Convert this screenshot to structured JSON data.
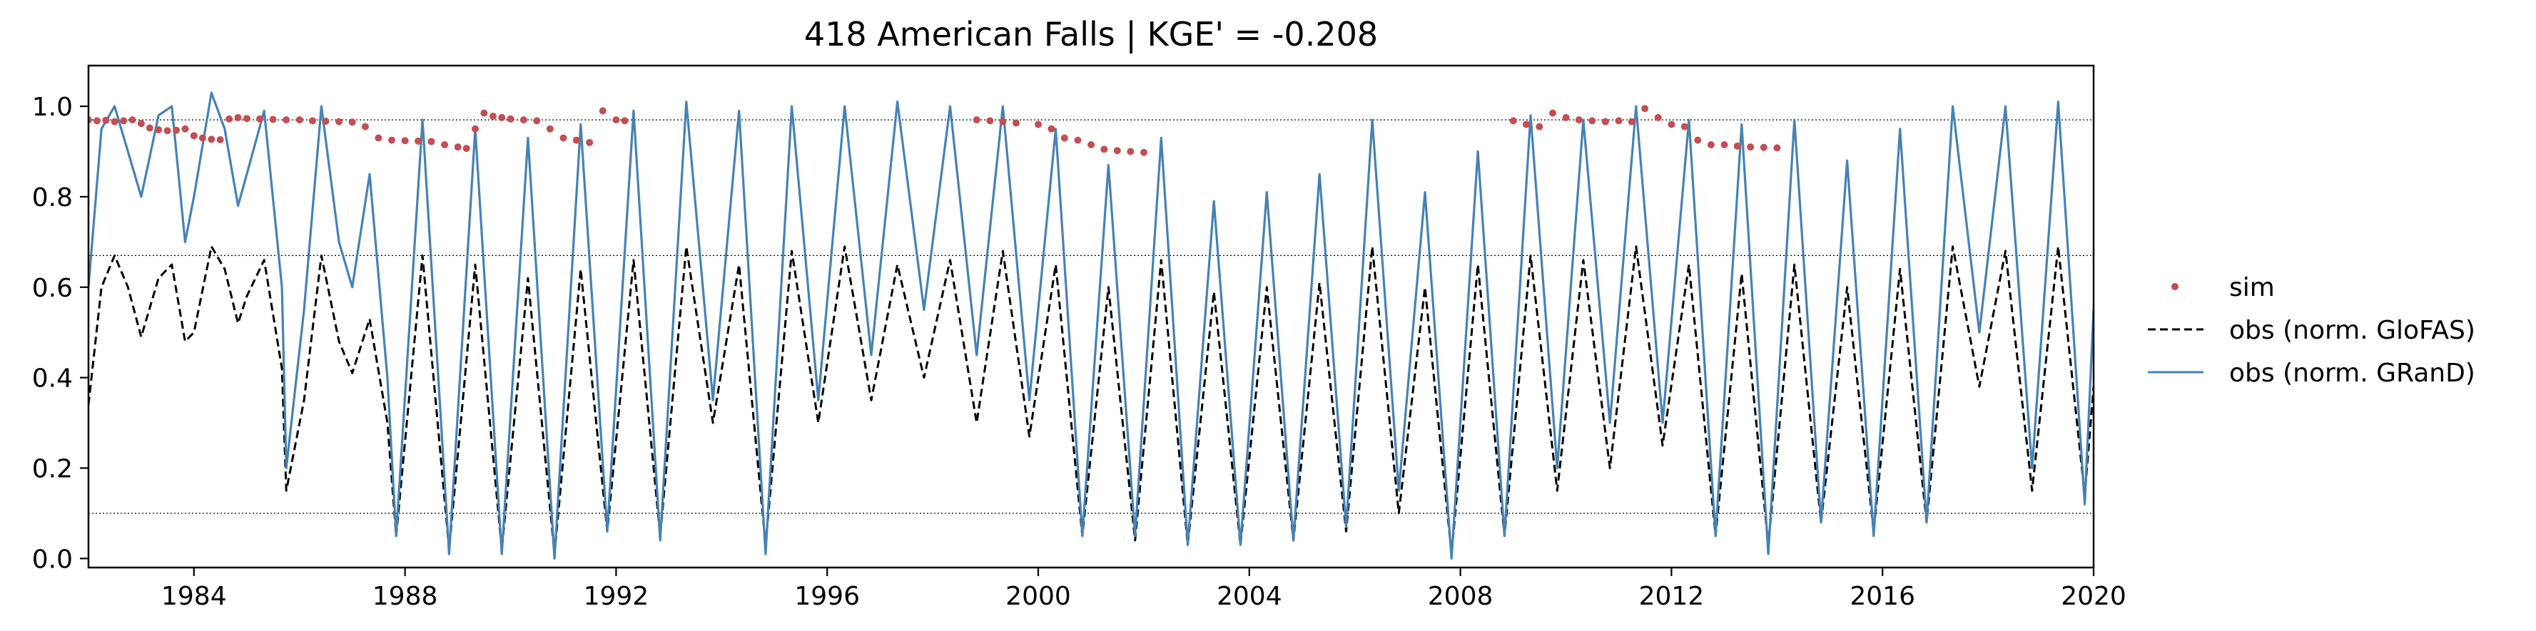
{
  "chart_data": {
    "type": "line",
    "title": "418  American Falls | KGE' = -0.208",
    "xlabel": "",
    "ylabel": "",
    "x_range": [
      "1982-01-01",
      "2020-01-01"
    ],
    "ylim": [
      -0.02,
      1.09
    ],
    "x_ticks": [
      {
        "label": "1984",
        "date": "1984-01-01"
      },
      {
        "label": "1988",
        "date": "1988-01-01"
      },
      {
        "label": "1992",
        "date": "1992-01-01"
      },
      {
        "label": "1996",
        "date": "1996-01-01"
      },
      {
        "label": "2000",
        "date": "2000-01-01"
      },
      {
        "label": "2004",
        "date": "2004-01-01"
      },
      {
        "label": "2008",
        "date": "2008-01-01"
      },
      {
        "label": "2012",
        "date": "2012-01-01"
      },
      {
        "label": "2016",
        "date": "2016-01-01"
      },
      {
        "label": "2020",
        "date": "2020-01-01"
      }
    ],
    "y_ticks": [
      {
        "label": "0.0",
        "value": 0.0
      },
      {
        "label": "0.2",
        "value": 0.2
      },
      {
        "label": "0.4",
        "value": 0.4
      },
      {
        "label": "0.6",
        "value": 0.6
      },
      {
        "label": "0.8",
        "value": 0.8
      },
      {
        "label": "1.0",
        "value": 1.0
      }
    ],
    "reference_lines": [
      0.1,
      0.67,
      0.97
    ],
    "grid": false,
    "legend_position": "right",
    "series": [
      {
        "name": "sim",
        "style": "dots",
        "color": "#c44e52",
        "points": [
          [
            "1982-01-01",
            0.97
          ],
          [
            "1982-03-01",
            0.968
          ],
          [
            "1982-05-01",
            0.969
          ],
          [
            "1982-07-01",
            0.966
          ],
          [
            "1982-09-01",
            0.968
          ],
          [
            "1982-11-01",
            0.97
          ],
          [
            "1983-01-01",
            0.962
          ],
          [
            "1983-03-01",
            0.952
          ],
          [
            "1983-05-01",
            0.948
          ],
          [
            "1983-07-01",
            0.946
          ],
          [
            "1983-09-01",
            0.947
          ],
          [
            "1983-11-01",
            0.95
          ],
          [
            "1984-01-01",
            0.935
          ],
          [
            "1984-03-01",
            0.93
          ],
          [
            "1984-05-01",
            0.927
          ],
          [
            "1984-07-01",
            0.926
          ],
          [
            "1984-09-01",
            0.972
          ],
          [
            "1984-11-01",
            0.975
          ],
          [
            "1985-01-01",
            0.973
          ],
          [
            "1985-04-01",
            0.972
          ],
          [
            "1985-07-01",
            0.971
          ],
          [
            "1985-10-01",
            0.97
          ],
          [
            "1986-01-01",
            0.97
          ],
          [
            "1986-04-01",
            0.968
          ],
          [
            "1986-07-01",
            0.967
          ],
          [
            "1986-10-01",
            0.966
          ],
          [
            "1987-01-01",
            0.965
          ],
          [
            "1987-04-01",
            0.955
          ],
          [
            "1987-07-01",
            0.93
          ],
          [
            "1987-10-01",
            0.925
          ],
          [
            "1988-01-01",
            0.924
          ],
          [
            "1988-04-01",
            0.923
          ],
          [
            "1988-07-01",
            0.922
          ],
          [
            "1988-10-01",
            0.915
          ],
          [
            "1989-01-01",
            0.91
          ],
          [
            "1989-03-01",
            0.907
          ],
          [
            "1989-05-01",
            0.95
          ],
          [
            "1989-07-01",
            0.985
          ],
          [
            "1989-09-01",
            0.978
          ],
          [
            "1989-11-01",
            0.975
          ],
          [
            "1990-01-01",
            0.972
          ],
          [
            "1990-04-01",
            0.97
          ],
          [
            "1990-07-01",
            0.968
          ],
          [
            "1990-10-01",
            0.95
          ],
          [
            "1991-01-01",
            0.93
          ],
          [
            "1991-04-01",
            0.925
          ],
          [
            "1991-07-01",
            0.92
          ],
          [
            "1991-10-01",
            0.99
          ],
          [
            "1992-01-01",
            0.97
          ],
          [
            "1992-03-01",
            0.968
          ],
          [
            "1998-11-01",
            0.97
          ],
          [
            "1999-02-01",
            0.968
          ],
          [
            "1999-05-01",
            0.966
          ],
          [
            "1999-08-01",
            0.963
          ],
          [
            "2000-01-01",
            0.96
          ],
          [
            "2000-04-01",
            0.95
          ],
          [
            "2000-07-01",
            0.93
          ],
          [
            "2000-10-01",
            0.925
          ],
          [
            "2001-01-01",
            0.915
          ],
          [
            "2001-04-01",
            0.905
          ],
          [
            "2001-07-01",
            0.902
          ],
          [
            "2001-10-01",
            0.9
          ],
          [
            "2002-01-01",
            0.898
          ],
          [
            "2009-01-01",
            0.968
          ],
          [
            "2009-04-01",
            0.96
          ],
          [
            "2009-07-01",
            0.955
          ],
          [
            "2009-10-01",
            0.985
          ],
          [
            "2010-01-01",
            0.975
          ],
          [
            "2010-04-01",
            0.97
          ],
          [
            "2010-07-01",
            0.968
          ],
          [
            "2010-10-01",
            0.966
          ],
          [
            "2011-01-01",
            0.968
          ],
          [
            "2011-04-01",
            0.966
          ],
          [
            "2011-07-01",
            0.995
          ],
          [
            "2011-10-01",
            0.975
          ],
          [
            "2012-01-01",
            0.96
          ],
          [
            "2012-04-01",
            0.955
          ],
          [
            "2012-07-01",
            0.925
          ],
          [
            "2012-10-01",
            0.915
          ],
          [
            "2013-01-01",
            0.915
          ],
          [
            "2013-04-01",
            0.912
          ],
          [
            "2013-07-01",
            0.91
          ],
          [
            "2013-10-01",
            0.909
          ],
          [
            "2014-01-01",
            0.908
          ]
        ]
      },
      {
        "name": "obs (norm. GloFAS)",
        "style": "dashed",
        "color": "#000000",
        "points": [
          [
            "1982-01-01",
            0.34
          ],
          [
            "1982-04-01",
            0.6
          ],
          [
            "1982-07-01",
            0.67
          ],
          [
            "1982-10-01",
            0.6
          ],
          [
            "1983-01-01",
            0.49
          ],
          [
            "1983-05-01",
            0.62
          ],
          [
            "1983-08-01",
            0.65
          ],
          [
            "1983-11-01",
            0.48
          ],
          [
            "1984-01-01",
            0.5
          ],
          [
            "1984-05-01",
            0.69
          ],
          [
            "1984-08-01",
            0.64
          ],
          [
            "1984-11-01",
            0.52
          ],
          [
            "1985-01-01",
            0.58
          ],
          [
            "1985-05-01",
            0.66
          ],
          [
            "1985-09-01",
            0.42
          ],
          [
            "1985-10-01",
            0.15
          ],
          [
            "1986-02-01",
            0.35
          ],
          [
            "1986-06-01",
            0.67
          ],
          [
            "1986-10-01",
            0.48
          ],
          [
            "1987-01-01",
            0.41
          ],
          [
            "1987-05-01",
            0.53
          ],
          [
            "1987-09-01",
            0.3
          ],
          [
            "1987-11-01",
            0.05
          ],
          [
            "1988-05-01",
            0.67
          ],
          [
            "1988-11-01",
            0.02
          ],
          [
            "1989-05-01",
            0.65
          ],
          [
            "1989-11-01",
            0.02
          ],
          [
            "1990-05-01",
            0.62
          ],
          [
            "1990-11-01",
            0.01
          ],
          [
            "1991-05-01",
            0.64
          ],
          [
            "1991-11-01",
            0.06
          ],
          [
            "1992-05-01",
            0.66
          ],
          [
            "1992-11-01",
            0.05
          ],
          [
            "1993-05-01",
            0.69
          ],
          [
            "1993-11-01",
            0.3
          ],
          [
            "1994-05-01",
            0.65
          ],
          [
            "1994-11-01",
            0.03
          ],
          [
            "1995-05-01",
            0.68
          ],
          [
            "1995-11-01",
            0.3
          ],
          [
            "1996-05-01",
            0.69
          ],
          [
            "1996-11-01",
            0.35
          ],
          [
            "1997-05-01",
            0.65
          ],
          [
            "1997-11-01",
            0.4
          ],
          [
            "1998-05-01",
            0.66
          ],
          [
            "1998-11-01",
            0.3
          ],
          [
            "1999-05-01",
            0.68
          ],
          [
            "1999-11-01",
            0.27
          ],
          [
            "2000-05-01",
            0.65
          ],
          [
            "2000-11-01",
            0.05
          ],
          [
            "2001-05-01",
            0.6
          ],
          [
            "2001-11-01",
            0.04
          ],
          [
            "2002-05-01",
            0.66
          ],
          [
            "2002-11-01",
            0.03
          ],
          [
            "2003-05-01",
            0.59
          ],
          [
            "2003-11-01",
            0.03
          ],
          [
            "2004-05-01",
            0.6
          ],
          [
            "2004-11-01",
            0.04
          ],
          [
            "2005-05-01",
            0.61
          ],
          [
            "2005-11-01",
            0.06
          ],
          [
            "2006-05-01",
            0.69
          ],
          [
            "2006-11-01",
            0.1
          ],
          [
            "2007-05-01",
            0.6
          ],
          [
            "2007-11-01",
            0.01
          ],
          [
            "2008-05-01",
            0.65
          ],
          [
            "2008-11-01",
            0.05
          ],
          [
            "2009-05-01",
            0.67
          ],
          [
            "2009-11-01",
            0.15
          ],
          [
            "2010-05-01",
            0.66
          ],
          [
            "2010-11-01",
            0.2
          ],
          [
            "2011-05-01",
            0.69
          ],
          [
            "2011-11-01",
            0.25
          ],
          [
            "2012-05-01",
            0.65
          ],
          [
            "2012-11-01",
            0.05
          ],
          [
            "2013-05-01",
            0.63
          ],
          [
            "2013-11-01",
            0.03
          ],
          [
            "2014-05-01",
            0.65
          ],
          [
            "2014-11-01",
            0.08
          ],
          [
            "2015-05-01",
            0.6
          ],
          [
            "2015-11-01",
            0.06
          ],
          [
            "2016-05-01",
            0.64
          ],
          [
            "2016-11-01",
            0.08
          ],
          [
            "2017-05-01",
            0.69
          ],
          [
            "2017-11-01",
            0.38
          ],
          [
            "2018-05-01",
            0.68
          ],
          [
            "2018-11-01",
            0.15
          ],
          [
            "2019-05-01",
            0.69
          ],
          [
            "2019-11-01",
            0.14
          ],
          [
            "2020-01-01",
            0.38
          ]
        ]
      },
      {
        "name": "obs (norm. GRanD)",
        "style": "solid",
        "color": "#4682b4",
        "points": [
          [
            "1982-01-01",
            0.6
          ],
          [
            "1982-04-01",
            0.95
          ],
          [
            "1982-07-01",
            1.0
          ],
          [
            "1982-10-01",
            0.9
          ],
          [
            "1983-01-01",
            0.8
          ],
          [
            "1983-05-01",
            0.98
          ],
          [
            "1983-08-01",
            1.0
          ],
          [
            "1983-11-01",
            0.7
          ],
          [
            "1984-01-01",
            0.8
          ],
          [
            "1984-05-01",
            1.03
          ],
          [
            "1984-08-01",
            0.95
          ],
          [
            "1984-11-01",
            0.78
          ],
          [
            "1985-01-01",
            0.85
          ],
          [
            "1985-05-01",
            0.99
          ],
          [
            "1985-09-01",
            0.6
          ],
          [
            "1985-10-01",
            0.2
          ],
          [
            "1986-02-01",
            0.55
          ],
          [
            "1986-06-01",
            1.0
          ],
          [
            "1986-10-01",
            0.7
          ],
          [
            "1987-01-01",
            0.6
          ],
          [
            "1987-05-01",
            0.85
          ],
          [
            "1987-09-01",
            0.4
          ],
          [
            "1987-11-01",
            0.05
          ],
          [
            "1988-05-01",
            0.97
          ],
          [
            "1988-11-01",
            0.01
          ],
          [
            "1989-05-01",
            0.95
          ],
          [
            "1989-11-01",
            0.01
          ],
          [
            "1990-05-01",
            0.93
          ],
          [
            "1990-11-01",
            0.0
          ],
          [
            "1991-05-01",
            0.96
          ],
          [
            "1991-11-01",
            0.06
          ],
          [
            "1992-05-01",
            0.99
          ],
          [
            "1992-11-01",
            0.04
          ],
          [
            "1993-05-01",
            1.01
          ],
          [
            "1993-11-01",
            0.35
          ],
          [
            "1994-05-01",
            0.99
          ],
          [
            "1994-11-01",
            0.01
          ],
          [
            "1995-05-01",
            1.0
          ],
          [
            "1995-11-01",
            0.35
          ],
          [
            "1996-05-01",
            1.0
          ],
          [
            "1996-11-01",
            0.45
          ],
          [
            "1997-05-01",
            1.01
          ],
          [
            "1997-11-01",
            0.55
          ],
          [
            "1998-05-01",
            1.0
          ],
          [
            "1998-11-01",
            0.45
          ],
          [
            "1999-05-01",
            1.0
          ],
          [
            "1999-11-01",
            0.35
          ],
          [
            "2000-05-01",
            0.95
          ],
          [
            "2000-11-01",
            0.05
          ],
          [
            "2001-05-01",
            0.87
          ],
          [
            "2001-11-01",
            0.05
          ],
          [
            "2002-05-01",
            0.93
          ],
          [
            "2002-11-01",
            0.03
          ],
          [
            "2003-05-01",
            0.79
          ],
          [
            "2003-11-01",
            0.03
          ],
          [
            "2004-05-01",
            0.81
          ],
          [
            "2004-11-01",
            0.04
          ],
          [
            "2005-05-01",
            0.85
          ],
          [
            "2005-11-01",
            0.07
          ],
          [
            "2006-05-01",
            0.97
          ],
          [
            "2006-11-01",
            0.15
          ],
          [
            "2007-05-01",
            0.81
          ],
          [
            "2007-11-01",
            0.0
          ],
          [
            "2008-05-01",
            0.9
          ],
          [
            "2008-11-01",
            0.05
          ],
          [
            "2009-05-01",
            0.98
          ],
          [
            "2009-11-01",
            0.2
          ],
          [
            "2010-05-01",
            0.97
          ],
          [
            "2010-11-01",
            0.3
          ],
          [
            "2011-05-01",
            1.0
          ],
          [
            "2011-11-01",
            0.3
          ],
          [
            "2012-05-01",
            0.97
          ],
          [
            "2012-11-01",
            0.05
          ],
          [
            "2013-05-01",
            0.96
          ],
          [
            "2013-11-01",
            0.01
          ],
          [
            "2014-05-01",
            0.97
          ],
          [
            "2014-11-01",
            0.08
          ],
          [
            "2015-05-01",
            0.88
          ],
          [
            "2015-11-01",
            0.05
          ],
          [
            "2016-05-01",
            0.95
          ],
          [
            "2016-11-01",
            0.08
          ],
          [
            "2017-05-01",
            1.0
          ],
          [
            "2017-11-01",
            0.5
          ],
          [
            "2018-05-01",
            1.0
          ],
          [
            "2018-11-01",
            0.2
          ],
          [
            "2019-05-01",
            1.01
          ],
          [
            "2019-11-01",
            0.12
          ],
          [
            "2020-01-01",
            0.55
          ]
        ]
      }
    ]
  }
}
